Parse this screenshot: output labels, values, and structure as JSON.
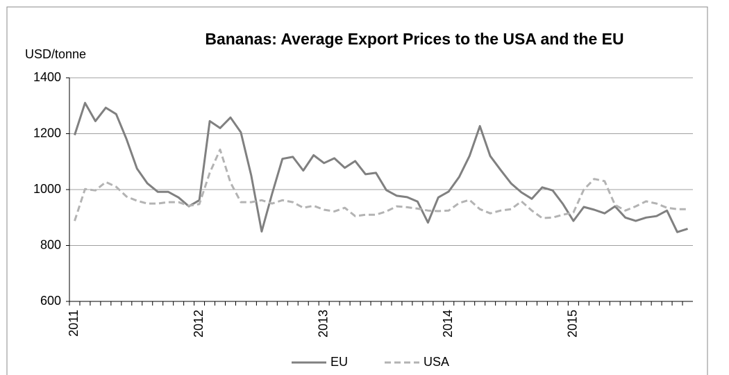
{
  "chart_data": {
    "type": "line",
    "title": "Bananas: Average Export Prices to the USA and the EU",
    "y_label": "USD/tonne",
    "categories": [
      "2011",
      null,
      null,
      null,
      null,
      null,
      null,
      null,
      null,
      null,
      null,
      null,
      "2012",
      null,
      null,
      null,
      null,
      null,
      null,
      null,
      null,
      null,
      null,
      null,
      "2013",
      null,
      null,
      null,
      null,
      null,
      null,
      null,
      null,
      null,
      null,
      null,
      "2014",
      null,
      null,
      null,
      null,
      null,
      null,
      null,
      null,
      null,
      null,
      null,
      "2015",
      null,
      null,
      null,
      null,
      null,
      null,
      null,
      null,
      null,
      null,
      null
    ],
    "series": [
      {
        "name": "EU",
        "color": "#808080",
        "dash": false,
        "values": [
          1195,
          1310,
          1245,
          1293,
          1270,
          1180,
          1075,
          1022,
          992,
          992,
          972,
          940,
          962,
          1245,
          1220,
          1258,
          1205,
          1050,
          850,
          985,
          1110,
          1117,
          1068,
          1123,
          1095,
          1112,
          1078,
          1102,
          1055,
          1060,
          998,
          978,
          973,
          957,
          882,
          972,
          993,
          1045,
          1120,
          1227,
          1120,
          1070,
          1022,
          990,
          967,
          1008,
          997,
          948,
          888,
          938,
          928,
          915,
          940,
          900,
          888,
          900,
          905,
          925,
          848,
          860
        ]
      },
      {
        "name": "USA",
        "color": "#b3b3b3",
        "dash": true,
        "values": [
          888,
          1002,
          997,
          1027,
          1010,
          975,
          960,
          950,
          950,
          955,
          955,
          942,
          948,
          1060,
          1143,
          1025,
          955,
          955,
          962,
          950,
          962,
          955,
          935,
          942,
          928,
          922,
          935,
          905,
          910,
          910,
          922,
          940,
          937,
          932,
          925,
          923,
          925,
          952,
          963,
          930,
          915,
          925,
          930,
          958,
          925,
          898,
          900,
          910,
          918,
          1000,
          1038,
          1030,
          945,
          925,
          940,
          958,
          950,
          935,
          930,
          930
        ]
      }
    ],
    "ylim": [
      600,
      1400
    ],
    "yticks": [
      600,
      800,
      1000,
      1200,
      1400
    ],
    "grid": true,
    "legend": "bottom"
  }
}
